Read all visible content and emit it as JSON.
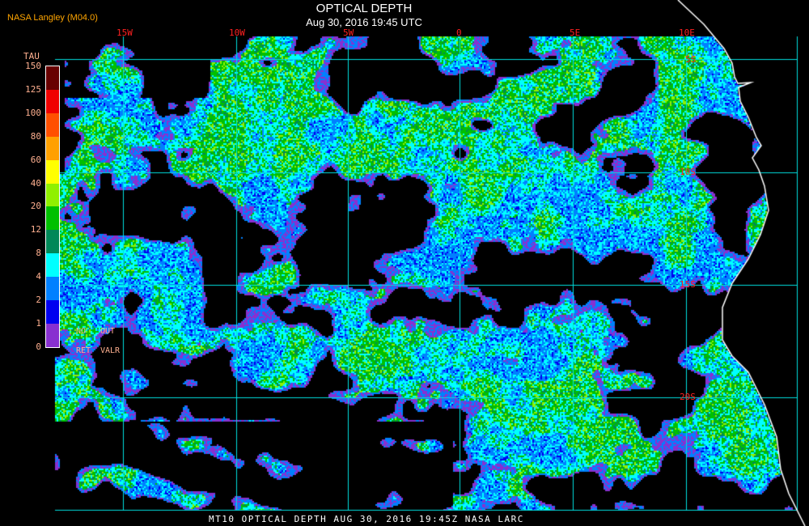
{
  "header": {
    "credit": "NASA Langley (M04.0)",
    "title": "OPTICAL DEPTH",
    "subtitle": "Aug 30, 2016 19:45 UTC"
  },
  "longitude_labels": [
    "15W",
    "10W",
    "5W",
    "0",
    "5E",
    "10E"
  ],
  "latitude_labels": [
    "5S",
    "10S",
    "15S",
    "20S"
  ],
  "colorbar": {
    "title": "TAU",
    "labels": [
      "150",
      "125",
      "100",
      "80",
      "60",
      "40",
      "20",
      "12",
      "8",
      "4",
      "2",
      "1",
      "0"
    ],
    "colors": [
      "#680000",
      "#f00000",
      "#ff5000",
      "#ffa000",
      "#ffff00",
      "#90f000",
      "#00c000",
      "#008858",
      "#00ffff",
      "#0080ff",
      "#0000f0",
      "#8830d0"
    ],
    "no_retrieval": {
      "line1a": "NO",
      "line1b": "OUT",
      "line2a": "RET",
      "line2b": "VALR"
    }
  },
  "colors": {
    "grid": "#00e0e0",
    "coastline": "#ffffff",
    "label": "#ff2020"
  },
  "footer": "MT10  OPTICAL DEPTH   AUG 30, 2016 19:45Z   NASA LARC"
}
